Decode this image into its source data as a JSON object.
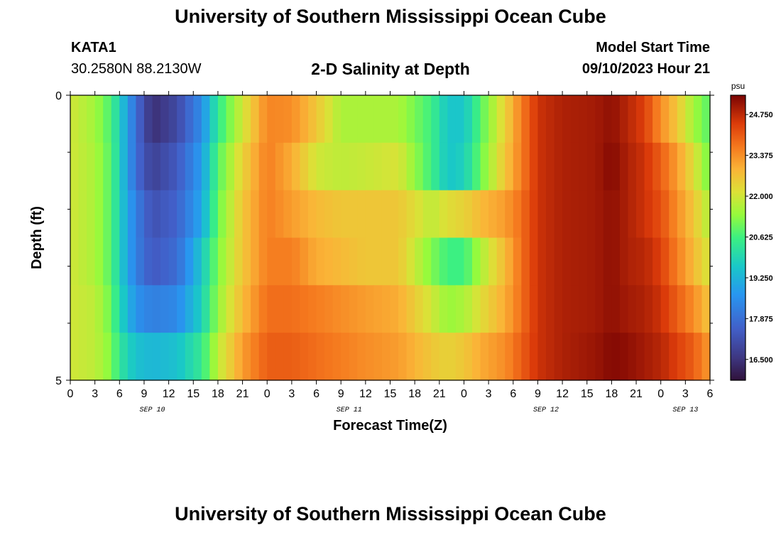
{
  "header": {
    "title": "University of Southern Mississippi Ocean Cube",
    "station": "KATA1",
    "coordinates": "30.2580N  88.2130W",
    "subtitle": "2-D Salinity at Depth",
    "start_label": "Model Start Time",
    "start_value": "09/10/2023 Hour 21"
  },
  "footer": {
    "title": "University of Southern Mississippi Ocean Cube"
  },
  "chart_data": {
    "type": "heatmap",
    "xlabel": "Forecast Time(Z)",
    "ylabel": "Depth (ft)",
    "y_ticks": [
      "0",
      "5"
    ],
    "ylim": [
      0,
      5
    ],
    "x_tick_labels": [
      "0",
      "3",
      "6",
      "9",
      "12",
      "15",
      "18",
      "21",
      "0",
      "3",
      "6",
      "9",
      "12",
      "15",
      "18",
      "21",
      "0",
      "3",
      "6",
      "9",
      "12",
      "15",
      "18",
      "21",
      "0",
      "3",
      "6"
    ],
    "day_labels": [
      {
        "label": "SEP 10",
        "hour": 10
      },
      {
        "label": "SEP 11",
        "hour": 34
      },
      {
        "label": "SEP 12",
        "hour": 58
      },
      {
        "label": "SEP 13",
        "hour": 75
      }
    ],
    "hours_range": [
      0,
      78
    ],
    "colorbar": {
      "unit": "psu",
      "labels": [
        "24.750",
        "23.375",
        "22.000",
        "20.625",
        "19.250",
        "17.875",
        "16.500"
      ],
      "range": [
        15.8,
        25.4
      ]
    },
    "depth_layers": [
      0.5,
      1.5,
      2.5,
      3.5,
      4.5
    ],
    "salinity_keyframes": {
      "hours": [
        0,
        3,
        5,
        6,
        8,
        10,
        13,
        16,
        18,
        21,
        24,
        27,
        30,
        33,
        36,
        40,
        44,
        46,
        48,
        50,
        53,
        55,
        57,
        60,
        64,
        66,
        68,
        70,
        72,
        74,
        76,
        78
      ],
      "layers": [
        [
          22.0,
          21.5,
          20.7,
          19.8,
          17.8,
          16.4,
          17.0,
          18.5,
          20.4,
          22.0,
          23.5,
          23.4,
          22.6,
          21.6,
          21.6,
          21.6,
          20.6,
          19.6,
          19.6,
          20.8,
          22.4,
          23.6,
          24.6,
          24.9,
          25.0,
          25.2,
          24.8,
          24.4,
          23.4,
          22.6,
          21.5,
          20.8
        ],
        [
          22.0,
          21.6,
          20.8,
          19.8,
          17.8,
          16.8,
          17.4,
          18.8,
          20.8,
          22.4,
          23.6,
          23.0,
          22.0,
          21.8,
          21.9,
          22.1,
          20.6,
          19.6,
          19.8,
          21.0,
          22.6,
          23.6,
          24.6,
          24.9,
          25.0,
          25.3,
          24.9,
          24.6,
          24.0,
          23.2,
          22.2,
          21.0
        ],
        [
          22.0,
          21.6,
          20.8,
          19.8,
          18.2,
          17.2,
          17.6,
          19.0,
          21.0,
          22.6,
          23.6,
          23.2,
          22.8,
          22.6,
          22.6,
          22.6,
          21.8,
          22.2,
          22.4,
          22.8,
          23.2,
          23.8,
          24.6,
          24.9,
          25.0,
          25.2,
          24.9,
          24.6,
          24.2,
          23.4,
          22.6,
          21.6
        ],
        [
          22.0,
          21.6,
          20.8,
          19.8,
          18.2,
          17.4,
          17.8,
          19.6,
          21.2,
          22.6,
          23.6,
          23.6,
          23.0,
          22.8,
          22.6,
          22.6,
          21.2,
          20.6,
          20.6,
          21.6,
          22.8,
          23.8,
          24.6,
          24.9,
          25.0,
          25.2,
          24.9,
          24.8,
          24.4,
          23.6,
          22.8,
          22.0
        ],
        [
          22.0,
          21.8,
          21.0,
          20.0,
          18.6,
          18.2,
          18.4,
          19.8,
          21.4,
          22.8,
          23.8,
          23.8,
          23.6,
          23.4,
          23.2,
          23.0,
          22.0,
          21.4,
          21.6,
          22.2,
          23.0,
          23.8,
          24.6,
          24.9,
          25.0,
          25.2,
          25.0,
          24.9,
          24.6,
          24.0,
          23.4,
          22.6
        ],
        [
          22.0,
          21.8,
          21.2,
          20.3,
          19.5,
          19.3,
          19.5,
          20.4,
          21.8,
          23.2,
          24.0,
          24.0,
          23.8,
          23.6,
          23.4,
          23.2,
          22.6,
          22.4,
          22.6,
          23.0,
          23.4,
          24.0,
          24.6,
          24.9,
          25.1,
          25.3,
          25.2,
          25.0,
          24.8,
          24.4,
          24.0,
          23.2
        ]
      ]
    }
  }
}
